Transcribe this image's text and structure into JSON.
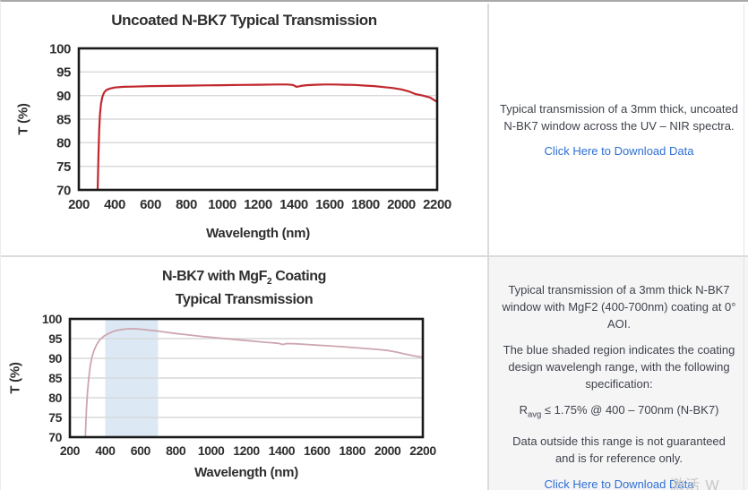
{
  "chart_data": [
    {
      "type": "line",
      "title": "Uncoated N-BK7 Typical Transmission",
      "xlabel": "Wavelength (nm)",
      "ylabel": "T (%)",
      "xlim": [
        200,
        2200
      ],
      "ylim": [
        70,
        100
      ],
      "xticks": [
        200,
        400,
        600,
        800,
        1000,
        1200,
        1400,
        1600,
        1800,
        2000,
        2200
      ],
      "yticks": [
        70,
        75,
        80,
        85,
        90,
        95,
        100
      ],
      "ygrid": [
        75,
        80,
        85,
        90,
        95
      ],
      "grid": true,
      "legend": "none",
      "grid_color": "#d9d9d9",
      "frame_color": "#1a1a1a",
      "series": [
        {
          "name": "Uncoated N-BK7 transmission",
          "color": "#c1272d",
          "points": [
            [
              305,
              70
            ],
            [
              307,
              73
            ],
            [
              310,
              78
            ],
            [
              314,
              83
            ],
            [
              318,
              86
            ],
            [
              324,
              88.3
            ],
            [
              332,
              89.8
            ],
            [
              342,
              90.7
            ],
            [
              355,
              91.2
            ],
            [
              375,
              91.5
            ],
            [
              400,
              91.7
            ],
            [
              450,
              91.85
            ],
            [
              500,
              91.9
            ],
            [
              600,
              92.0
            ],
            [
              700,
              92.05
            ],
            [
              800,
              92.1
            ],
            [
              900,
              92.15
            ],
            [
              1000,
              92.2
            ],
            [
              1100,
              92.25
            ],
            [
              1200,
              92.3
            ],
            [
              1300,
              92.35
            ],
            [
              1360,
              92.35
            ],
            [
              1395,
              92.25
            ],
            [
              1415,
              91.85
            ],
            [
              1440,
              92.05
            ],
            [
              1470,
              92.2
            ],
            [
              1520,
              92.3
            ],
            [
              1570,
              92.35
            ],
            [
              1620,
              92.35
            ],
            [
              1680,
              92.3
            ],
            [
              1740,
              92.25
            ],
            [
              1800,
              92.1
            ],
            [
              1850,
              92.0
            ],
            [
              1900,
              91.8
            ],
            [
              1950,
              91.6
            ],
            [
              2000,
              91.3
            ],
            [
              2040,
              90.9
            ],
            [
              2080,
              90.3
            ],
            [
              2120,
              90.0
            ],
            [
              2160,
              89.6
            ],
            [
              2185,
              89.0
            ],
            [
              2200,
              88.6
            ]
          ]
        }
      ]
    },
    {
      "type": "line",
      "title_line1_pre": "N-BK7 with MgF",
      "title_line1_sub": "2",
      "title_line1_post": " Coating",
      "title_line2": "Typical Transmission",
      "xlabel": "Wavelength (nm)",
      "ylabel": "T (%)",
      "xlim": [
        200,
        2200
      ],
      "ylim": [
        70,
        100
      ],
      "xticks": [
        200,
        400,
        600,
        800,
        1000,
        1200,
        1400,
        1600,
        1800,
        2000,
        2200
      ],
      "yticks": [
        70,
        75,
        80,
        85,
        90,
        95,
        100
      ],
      "ygrid": [
        75,
        80,
        85,
        90,
        95
      ],
      "grid": true,
      "legend": "none",
      "grid_color": "#d9d9d9",
      "frame_color": "#1a1a1a",
      "shaded_region": {
        "x": [
          400,
          700
        ],
        "color": "#dce9f5",
        "meaning": "coating design wavelength range"
      },
      "series": [
        {
          "name": "N-BK7 with MgF2 coating transmission",
          "color": "#cda6af",
          "points": [
            [
              288,
              70
            ],
            [
              291,
              74
            ],
            [
              295,
              78
            ],
            [
              300,
              81.5
            ],
            [
              307,
              85
            ],
            [
              315,
              88
            ],
            [
              325,
              90.3
            ],
            [
              337,
              92
            ],
            [
              352,
              93.5
            ],
            [
              370,
              94.7
            ],
            [
              395,
              95.7
            ],
            [
              420,
              96.3
            ],
            [
              450,
              96.9
            ],
            [
              480,
              97.2
            ],
            [
              510,
              97.4
            ],
            [
              545,
              97.5
            ],
            [
              580,
              97.45
            ],
            [
              620,
              97.3
            ],
            [
              660,
              97.1
            ],
            [
              700,
              96.9
            ],
            [
              750,
              96.6
            ],
            [
              800,
              96.3
            ],
            [
              850,
              96.05
            ],
            [
              900,
              95.8
            ],
            [
              950,
              95.55
            ],
            [
              1000,
              95.35
            ],
            [
              1060,
              95.1
            ],
            [
              1120,
              94.85
            ],
            [
              1180,
              94.6
            ],
            [
              1240,
              94.35
            ],
            [
              1300,
              94.1
            ],
            [
              1345,
              93.95
            ],
            [
              1385,
              93.8
            ],
            [
              1405,
              93.5
            ],
            [
              1430,
              93.75
            ],
            [
              1470,
              93.7
            ],
            [
              1530,
              93.55
            ],
            [
              1600,
              93.35
            ],
            [
              1670,
              93.15
            ],
            [
              1740,
              92.95
            ],
            [
              1800,
              92.75
            ],
            [
              1870,
              92.5
            ],
            [
              1930,
              92.3
            ],
            [
              2000,
              92.0
            ],
            [
              2050,
              91.6
            ],
            [
              2100,
              91.1
            ],
            [
              2140,
              90.7
            ],
            [
              2170,
              90.45
            ],
            [
              2200,
              90.3
            ]
          ]
        }
      ]
    }
  ],
  "panels": {
    "top_right": {
      "description": "Typical transmission of a 3mm thick, uncoated N-BK7 window across the UV – NIR spectra.",
      "link_label": "Click Here to Download Data"
    },
    "bottom_right": {
      "p1": "Typical transmission of a 3mm thick N-BK7 window with MgF2 (400-700nm) coating at 0° AOI.",
      "p2": "The blue shaded region indicates the coating design wavelengh range, with the following specification:",
      "spec": {
        "prefix": "R",
        "sub": "avg",
        "rest": " ≤ 1.75% @ 400 – 700nm (N-BK7)"
      },
      "p3": "Data outside this range is not guaranteed and is for reference only.",
      "link_label": "Click Here to Download Data"
    }
  },
  "colors": {
    "link": "#2f6fd4",
    "uncoated_curve": "#c1272d",
    "coated_curve": "#cda6af",
    "design_region": "#dce9f5",
    "bottom_panel_bg": "#f5f5f6"
  },
  "watermark": {
    "text": "激活 W"
  }
}
